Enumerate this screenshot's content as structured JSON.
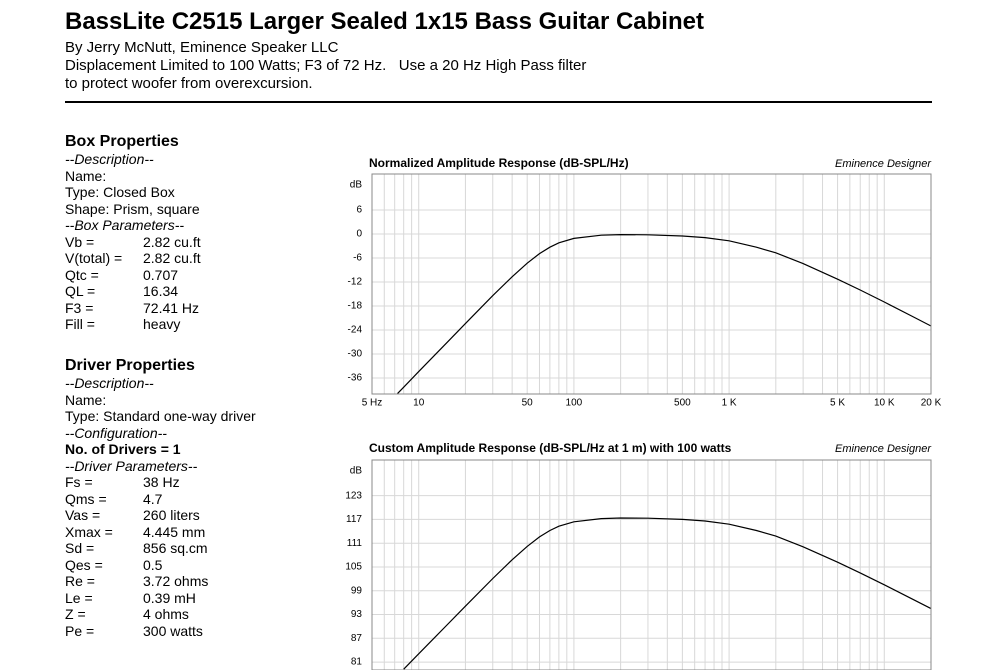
{
  "header": {
    "title": "BassLite C2515 Larger Sealed 1x15 Bass Guitar Cabinet",
    "lines": [
      "By Jerry McNutt, Eminence Speaker LLC",
      "Displacement Limited to 100 Watts; F3 of 72 Hz.   Use a 20 Hz High Pass filter",
      "to protect woofer from overexcursion."
    ]
  },
  "sections": [
    {
      "title": "Box Properties",
      "rows": [
        {
          "text": "--Description--",
          "style": "italic"
        },
        {
          "text": "Name:"
        },
        {
          "text": "Type: Closed Box"
        },
        {
          "text": "Shape: Prism, square"
        },
        {
          "text": "--Box Parameters--",
          "style": "italic"
        },
        {
          "label": "Vb =",
          "value": "2.82 cu.ft"
        },
        {
          "label": "V(total) =",
          "value": "2.82 cu.ft"
        },
        {
          "label": "Qtc =",
          "value": "0.707"
        },
        {
          "label": "QL =",
          "value": "16.34"
        },
        {
          "label": "F3 =",
          "value": "72.41 Hz"
        },
        {
          "label": "Fill =",
          "value": "heavy"
        }
      ]
    },
    {
      "title": "Driver Properties",
      "rows": [
        {
          "text": "--Description--",
          "style": "italic"
        },
        {
          "text": "Name:"
        },
        {
          "text": "Type: Standard one-way driver"
        },
        {
          "text": "--Configuration--",
          "style": "italic"
        },
        {
          "text": "No. of Drivers = 1",
          "style": "bold"
        },
        {
          "text": "--Driver Parameters--",
          "style": "italic"
        },
        {
          "label": "Fs =",
          "value": "38 Hz"
        },
        {
          "label": "Qms =",
          "value": "4.7"
        },
        {
          "label": "Vas =",
          "value": "260 liters"
        },
        {
          "label": "Xmax =",
          "value": "4.445 mm"
        },
        {
          "label": "Sd =",
          "value": "856 sq.cm"
        },
        {
          "label": "Qes =",
          "value": "0.5"
        },
        {
          "label": "Re =",
          "value": "3.72 ohms"
        },
        {
          "label": "Le =",
          "value": "0.39 mH"
        },
        {
          "label": "Z =",
          "value": "4 ohms"
        },
        {
          "label": "Pe =",
          "value": "300 watts"
        }
      ]
    }
  ],
  "chart_data": [
    {
      "type": "line",
      "title": "Normalized Amplitude Response (dB-SPL/Hz)",
      "source": "Eminence Designer",
      "y_label": "dB",
      "log_x": true,
      "xlim": [
        5,
        20000
      ],
      "xticks": [
        {
          "value": 5,
          "label": "5 Hz"
        },
        10,
        50,
        100,
        500,
        {
          "value": 1000,
          "label": "1 K"
        },
        {
          "value": 5000,
          "label": "5 K"
        },
        {
          "value": 10000,
          "label": "10 K"
        },
        {
          "value": 20000,
          "label": "20 K"
        }
      ],
      "xgrid": [
        6,
        7,
        8,
        9,
        10,
        20,
        30,
        40,
        50,
        60,
        70,
        80,
        90,
        100,
        200,
        300,
        400,
        500,
        600,
        700,
        800,
        900,
        1000,
        2000,
        3000,
        4000,
        5000,
        6000,
        7000,
        8000,
        9000,
        10000
      ],
      "ylim": [
        -40,
        15
      ],
      "yticks": [
        6,
        0,
        -6,
        -12,
        -18,
        -24,
        -30,
        -36
      ],
      "grid": true,
      "color": "#000000",
      "x": [
        7.3,
        8,
        10,
        15,
        20,
        30,
        40,
        50,
        60,
        70,
        80,
        100,
        150,
        200,
        300,
        500,
        700,
        1000,
        1500,
        2000,
        3000,
        5000,
        7000,
        10000,
        15000,
        20000
      ],
      "values": [
        -39.9,
        -38.3,
        -34.4,
        -27.4,
        -22.4,
        -15.4,
        -10.7,
        -7.3,
        -4.9,
        -3.3,
        -2.2,
        -1.1,
        -0.3,
        -0.15,
        -0.2,
        -0.5,
        -0.9,
        -1.7,
        -3.3,
        -4.7,
        -7.4,
        -11.3,
        -14.0,
        -17.0,
        -20.5,
        -23.0
      ]
    },
    {
      "type": "line",
      "title": "Custom Amplitude Response (dB-SPL/Hz at 1 m) with 100 watts",
      "source": "Eminence Designer",
      "y_label": "dB",
      "log_x": true,
      "xlim": [
        5,
        20000
      ],
      "xgrid": [
        6,
        7,
        8,
        9,
        10,
        20,
        30,
        40,
        50,
        60,
        70,
        80,
        90,
        100,
        200,
        300,
        400,
        500,
        600,
        700,
        800,
        900,
        1000,
        2000,
        3000,
        4000,
        5000,
        6000,
        7000,
        8000,
        9000,
        10000
      ],
      "ylim": [
        79,
        132
      ],
      "yticks": [
        123,
        117,
        111,
        105,
        99,
        93,
        87,
        81
      ],
      "grid": true,
      "color": "#000000",
      "x": [
        8,
        10,
        15,
        20,
        30,
        40,
        50,
        60,
        70,
        80,
        100,
        150,
        200,
        300,
        500,
        700,
        1000,
        1500,
        2000,
        3000,
        5000,
        7000,
        10000,
        15000,
        20000
      ],
      "values": [
        79.2,
        83.1,
        90.1,
        95.1,
        102.1,
        106.8,
        110.2,
        112.6,
        114.2,
        115.3,
        116.4,
        117.2,
        117.35,
        117.3,
        117.0,
        116.6,
        115.8,
        114.2,
        112.8,
        110.1,
        106.2,
        103.5,
        100.5,
        97.0,
        94.5
      ]
    }
  ]
}
